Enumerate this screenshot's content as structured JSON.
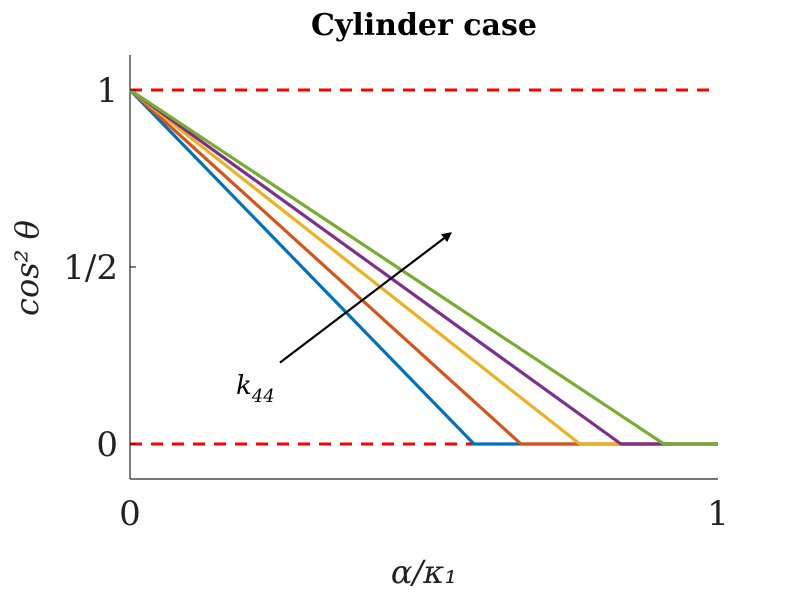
{
  "chart_data": {
    "type": "line",
    "title": "Cylinder case",
    "xlabel": "α/κ₁",
    "ylabel": "cos² θ",
    "xlim": [
      0,
      1
    ],
    "ylim": [
      -0.1,
      1.1
    ],
    "xticks": [
      {
        "value": 0,
        "label": "0"
      },
      {
        "value": 1,
        "label": "1"
      }
    ],
    "yticks": [
      {
        "value": 0,
        "label": "0"
      },
      {
        "value": 0.5,
        "label": "1/2"
      },
      {
        "value": 1,
        "label": "1"
      }
    ],
    "grid": false,
    "reference_lines": [
      {
        "y": 1,
        "color": "#ff0000",
        "style": "dashed"
      },
      {
        "y": 0,
        "color": "#ff0000",
        "style": "dashed"
      }
    ],
    "series": [
      {
        "color": "#0072bd",
        "x": [
          0,
          0.585,
          1.0
        ],
        "y": [
          1,
          0,
          0
        ]
      },
      {
        "color": "#d95319",
        "x": [
          0,
          0.665,
          1.0
        ],
        "y": [
          1,
          0,
          0
        ]
      },
      {
        "color": "#edb120",
        "x": [
          0,
          0.765,
          1.0
        ],
        "y": [
          1,
          0,
          0
        ]
      },
      {
        "color": "#7e2f8e",
        "x": [
          0,
          0.835,
          1.0
        ],
        "y": [
          1,
          0,
          0
        ]
      },
      {
        "color": "#77ac30",
        "x": [
          0,
          0.908,
          1.0
        ],
        "y": [
          1,
          0,
          0
        ]
      }
    ],
    "annotation": {
      "text_base": "k",
      "text_sub": "44",
      "arrow": {
        "from": [
          0.255,
          0.23
        ],
        "to": [
          0.545,
          0.595
        ]
      }
    }
  }
}
